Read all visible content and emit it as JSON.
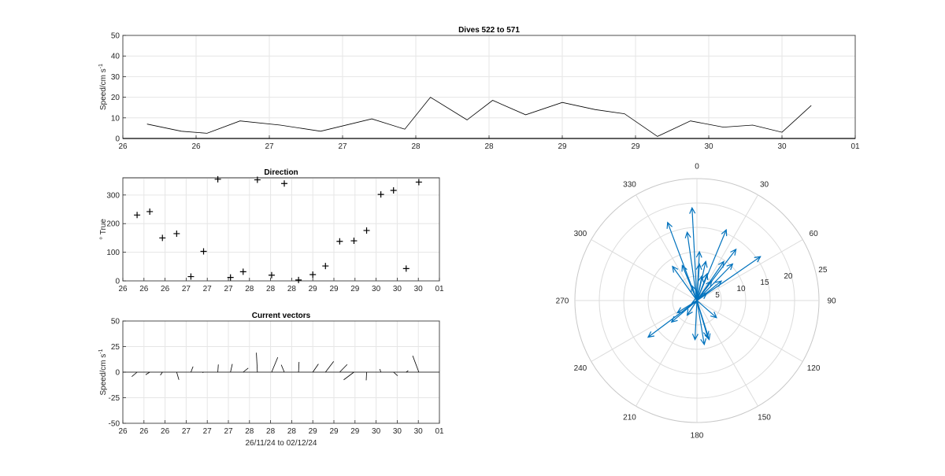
{
  "chart_data": [
    {
      "type": "line",
      "title": "Dives 522 to 571",
      "ylabel": "Speed/cm s",
      "ylabel_sup": "-1",
      "ylim": [
        0,
        50
      ],
      "yticks": [
        0,
        10,
        20,
        30,
        40,
        50
      ],
      "xticks": [
        "26",
        "26",
        "27",
        "27",
        "28",
        "28",
        "29",
        "29",
        "30",
        "30",
        "01"
      ],
      "grid": true,
      "series": [
        {
          "x": [
            0.33,
            0.8,
            1.15,
            1.6,
            2.15,
            2.7,
            3.4,
            3.85,
            4.2,
            4.7,
            5.05,
            5.5,
            6.0,
            6.45,
            6.85,
            7.3,
            7.75,
            8.2,
            8.6,
            9.0,
            9.4
          ],
          "values": [
            7,
            3.5,
            2.5,
            8.5,
            6.5,
            3.5,
            9.5,
            4.5,
            20,
            9,
            18.5,
            11.5,
            17.5,
            14,
            12,
            1,
            8.5,
            5.5,
            6.5,
            3,
            16
          ]
        }
      ]
    },
    {
      "type": "scatter",
      "title": "Direction",
      "ylabel": "° True",
      "ylim": [
        0,
        360
      ],
      "yticks": [
        0,
        100,
        200,
        300
      ],
      "xticks": [
        "26",
        "26",
        "26",
        "27",
        "27",
        "27",
        "28",
        "28",
        "28",
        "29",
        "29",
        "29",
        "30",
        "30",
        "30",
        "01"
      ],
      "grid": true,
      "series": [
        {
          "x": [
            0.45,
            0.85,
            1.25,
            1.7,
            2.15,
            2.55,
            3.0,
            3.4,
            3.8,
            4.25,
            4.7,
            5.1,
            5.55,
            6.0,
            6.4,
            6.85,
            7.3,
            7.7,
            8.15,
            8.55,
            8.95,
            9.35
          ],
          "values": [
            230,
            242,
            150,
            165,
            15,
            103,
            355,
            12,
            32,
            353,
            20,
            340,
            3,
            22,
            52,
            138,
            140,
            176,
            302,
            316,
            43,
            345
          ]
        }
      ]
    },
    {
      "type": "vector",
      "title": "Current vectors",
      "ylabel": "Speed/cm s",
      "ylabel_sup": "-1",
      "xlabel": "26/11/24 to 02/12/24",
      "ylim": [
        -50,
        50
      ],
      "yticks": [
        50,
        25,
        0,
        -25,
        -50
      ],
      "xticks": [
        "26",
        "26",
        "26",
        "27",
        "27",
        "27",
        "28",
        "28",
        "28",
        "29",
        "29",
        "29",
        "30",
        "30",
        "30",
        "01"
      ],
      "grid": true,
      "series": [
        {
          "x": [
            0.45,
            0.85,
            1.25,
            1.7,
            2.15,
            2.55,
            3.0,
            3.4,
            3.8,
            4.25,
            4.7,
            5.1,
            5.55,
            6.0,
            6.4,
            6.85,
            7.3,
            7.7,
            8.15,
            8.55,
            8.95,
            9.35
          ],
          "u": [
            -5.2,
            -4.0,
            -2.0,
            2.2,
            2.1,
            -1.0,
            0.5,
            1.8,
            5.0,
            -1.0,
            6.0,
            -3.0,
            0.5,
            5.5,
            8.0,
            7.3,
            -10.0,
            -0.4,
            -1.0,
            4.0,
            2.0,
            -6.0
          ],
          "v": [
            -4.4,
            -2.5,
            -3.0,
            -7.5,
            5.5,
            -0.5,
            7.5,
            8.0,
            4.0,
            19.0,
            14.5,
            7.2,
            10.0,
            8.0,
            10.5,
            7.5,
            -7.5,
            -8.0,
            3.0,
            -3.5,
            1.5,
            16.0
          ]
        }
      ]
    },
    {
      "type": "compass",
      "rlim": [
        0,
        25
      ],
      "rticks": [
        5,
        10,
        15,
        20,
        25
      ],
      "angle_ticks": [
        0,
        30,
        60,
        90,
        120,
        150,
        180,
        210,
        240,
        270,
        300,
        330
      ],
      "color": "#0072BD",
      "series": [
        {
          "u": [
            -5.2,
            -4.0,
            -2.0,
            2.2,
            2.1,
            -1.0,
            0.5,
            1.8,
            5.0,
            -1.0,
            6.0,
            -3.0,
            0.5,
            5.5,
            8.0,
            7.3,
            -10.0,
            -0.4,
            -1.0,
            4.0,
            2.0,
            -6.0,
            -2.0,
            -5.0,
            1.0,
            3.0,
            13.0,
            1.5,
            2.5
          ],
          "v": [
            -4.4,
            -2.5,
            -3.0,
            -7.5,
            5.5,
            -0.5,
            7.5,
            8.0,
            4.0,
            19.0,
            14.5,
            7.2,
            10.0,
            8.0,
            10.5,
            7.5,
            -7.5,
            -8.0,
            3.0,
            -3.5,
            1.5,
            16.0,
            14.0,
            7.0,
            5.0,
            4.0,
            9.0,
            -9.0,
            -8.0
          ]
        }
      ]
    }
  ]
}
